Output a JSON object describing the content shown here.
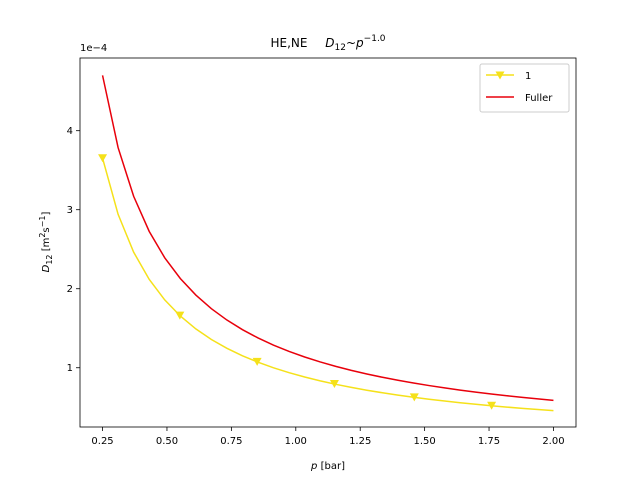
{
  "chart_data": {
    "type": "line",
    "title_main": "HE,NE",
    "title_formula": {
      "base": "D",
      "sub": "12",
      "approx": "~",
      "var": "p",
      "exp": "−1.0"
    },
    "xlabel": {
      "var": "p",
      "unit": "[bar]"
    },
    "ylabel": {
      "base": "D",
      "sub": "12",
      "unit_open": " [m",
      "unit_exp1": "2",
      "unit_mid": "s",
      "unit_exp2": "−1",
      "unit_close": "]"
    },
    "y_offset_label": "1e−4",
    "x_ticks": [
      0.25,
      0.5,
      0.75,
      1.0,
      1.25,
      1.5,
      1.75,
      2.0
    ],
    "x_tick_labels": [
      "0.25",
      "0.50",
      "0.75",
      "1.00",
      "1.25",
      "1.50",
      "1.75",
      "2.00"
    ],
    "y_ticks": [
      1,
      2,
      3,
      4
    ],
    "y_tick_labels": [
      "1",
      "2",
      "3",
      "4"
    ],
    "xlim": [
      0.1625,
      2.0875
    ],
    "ylim": [
      0.25,
      4.92
    ],
    "legend_position": "top-right",
    "series": [
      {
        "name": "1",
        "color": "#f5e11a",
        "marker": "triangle-down",
        "coef": 0.913,
        "x_start": 0.25,
        "x_end": 2.0,
        "marker_x": [
          0.25,
          0.55,
          0.85,
          1.15,
          1.46,
          1.76
        ]
      },
      {
        "name": "Fuller",
        "color": "#e8000b",
        "marker": "none",
        "coef": 1.175,
        "x_start": 0.25,
        "x_end": 2.0,
        "marker_x": []
      }
    ]
  }
}
